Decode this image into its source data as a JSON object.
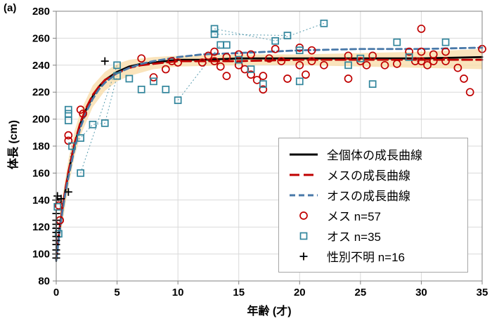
{
  "panel_label": "(a)",
  "chart_data": {
    "type": "scatter",
    "xlabel": "年齢 (才)",
    "ylabel": "体長 (cm)",
    "xlim": [
      0,
      35
    ],
    "ylim": [
      80,
      280
    ],
    "xticks": [
      0,
      5,
      10,
      15,
      20,
      25,
      30,
      35
    ],
    "yticks": [
      80,
      100,
      120,
      140,
      160,
      180,
      200,
      220,
      240,
      260,
      280
    ],
    "grid": true,
    "legend_position": "inside-bottom-right",
    "colors": {
      "all_curve": "#000000",
      "female_curve": "#C00000",
      "male_curve": "#4878A8",
      "female_marker": "#C00000",
      "male_marker": "#31859C",
      "unknown_marker": "#000000",
      "band": "#F9DFB0",
      "grid": "#D9D9D9",
      "axis": "#808080"
    },
    "band": {
      "x": [
        0.3,
        0.5,
        1,
        1.5,
        2,
        3,
        4,
        5,
        6,
        8,
        10,
        15,
        20,
        25,
        30,
        35
      ],
      "lower": [
        112,
        122,
        150,
        172,
        188,
        209,
        221,
        228,
        232,
        237,
        239,
        240,
        240,
        239,
        238,
        237
      ],
      "upper": [
        132,
        142,
        170,
        191,
        206,
        225,
        235,
        241,
        244,
        246,
        247,
        248,
        248,
        249,
        250,
        252
      ]
    },
    "curves": [
      {
        "key": "all",
        "name": "全個体の成長曲線",
        "style": "solid",
        "color_key": "all_curve",
        "x": [
          0,
          0.25,
          0.5,
          0.75,
          1,
          1.5,
          2,
          2.5,
          3,
          3.5,
          4,
          5,
          6,
          7,
          8,
          10,
          12,
          15,
          20,
          25,
          30,
          35
        ],
        "y": [
          96,
          116,
          133,
          147,
          160,
          181,
          197,
          208,
          217,
          224,
          229,
          235,
          239,
          241,
          242,
          244,
          244,
          245,
          245,
          245,
          245,
          246
        ]
      },
      {
        "key": "female",
        "name": "メスの成長曲線",
        "style": "dashed-long",
        "color_key": "female_curve",
        "x": [
          0,
          0.25,
          0.5,
          0.75,
          1,
          1.5,
          2,
          2.5,
          3,
          3.5,
          4,
          5,
          6,
          7,
          8,
          10,
          12,
          15,
          20,
          25,
          30,
          35
        ],
        "y": [
          97,
          117,
          134,
          148,
          161,
          182,
          198,
          209,
          218,
          224,
          229,
          234,
          238,
          240,
          241,
          243,
          243,
          243,
          244,
          244,
          244,
          244
        ]
      },
      {
        "key": "male",
        "name": "オスの成長曲線",
        "style": "dashed",
        "color_key": "male_curve",
        "x": [
          0,
          0.25,
          0.5,
          0.75,
          1,
          1.5,
          2,
          2.5,
          3,
          3.5,
          4,
          5,
          6,
          7,
          8,
          10,
          12,
          15,
          20,
          25,
          30,
          35
        ],
        "y": [
          95,
          114,
          131,
          145,
          157,
          178,
          194,
          206,
          215,
          222,
          227,
          234,
          238,
          241,
          243,
          246,
          248,
          249,
          251,
          252,
          252,
          253
        ]
      }
    ],
    "series": [
      {
        "key": "female",
        "name": "メス",
        "n": 57,
        "marker": "circle",
        "color_key": "female_marker",
        "points": [
          [
            0.2,
            136
          ],
          [
            0.3,
            125
          ],
          [
            1,
            188
          ],
          [
            1,
            184
          ],
          [
            2,
            207
          ],
          [
            2.2,
            204
          ],
          [
            7,
            245
          ],
          [
            8,
            231
          ],
          [
            9,
            237
          ],
          [
            9.5,
            243
          ],
          [
            10,
            242
          ],
          [
            12,
            242
          ],
          [
            12.5,
            247
          ],
          [
            13,
            250
          ],
          [
            13,
            243
          ],
          [
            13.5,
            239
          ],
          [
            14,
            246
          ],
          [
            14,
            232
          ],
          [
            15,
            248
          ],
          [
            15,
            240
          ],
          [
            15.5,
            237
          ],
          [
            16,
            248
          ],
          [
            16,
            233
          ],
          [
            16.5,
            229
          ],
          [
            17,
            232
          ],
          [
            17,
            222
          ],
          [
            17.5,
            245
          ],
          [
            18,
            252
          ],
          [
            18.5,
            243
          ],
          [
            19,
            230
          ],
          [
            20,
            253
          ],
          [
            20,
            240
          ],
          [
            20.5,
            233
          ],
          [
            21,
            251
          ],
          [
            21,
            243
          ],
          [
            22,
            240
          ],
          [
            24,
            247
          ],
          [
            24,
            230
          ],
          [
            25,
            243
          ],
          [
            25.5,
            240
          ],
          [
            26,
            247
          ],
          [
            27,
            240
          ],
          [
            28,
            241
          ],
          [
            29,
            250
          ],
          [
            29.5,
            243
          ],
          [
            30,
            267
          ],
          [
            30,
            250
          ],
          [
            30,
            243
          ],
          [
            30.5,
            240
          ],
          [
            31,
            248
          ],
          [
            31,
            243
          ],
          [
            32,
            250
          ],
          [
            32,
            243
          ],
          [
            33,
            238
          ],
          [
            33.5,
            230
          ],
          [
            34,
            220
          ],
          [
            35,
            252
          ]
        ]
      },
      {
        "key": "male",
        "name": "オス",
        "n": 35,
        "marker": "square",
        "color_key": "male_marker",
        "points": [
          [
            0.1,
            135
          ],
          [
            0.2,
            115
          ],
          [
            1,
            207
          ],
          [
            1,
            204
          ],
          [
            1,
            199
          ],
          [
            1.3,
            180
          ],
          [
            2,
            160
          ],
          [
            2,
            186
          ],
          [
            3,
            196
          ],
          [
            4,
            197
          ],
          [
            5,
            240
          ],
          [
            5,
            232
          ],
          [
            6,
            230
          ],
          [
            7,
            222
          ],
          [
            8,
            228
          ],
          [
            9,
            222
          ],
          [
            10,
            214
          ],
          [
            13,
            267
          ],
          [
            13,
            263
          ],
          [
            13.5,
            255
          ],
          [
            14,
            255
          ],
          [
            15,
            244
          ],
          [
            16,
            237
          ],
          [
            17,
            226
          ],
          [
            18,
            258
          ],
          [
            19,
            262
          ],
          [
            20,
            251
          ],
          [
            20,
            228
          ],
          [
            22,
            271
          ],
          [
            24,
            240
          ],
          [
            25,
            245
          ],
          [
            26,
            226
          ],
          [
            28,
            257
          ],
          [
            29,
            246
          ],
          [
            32,
            257
          ]
        ]
      },
      {
        "key": "unknown",
        "name": "性別不明",
        "n": 16,
        "marker": "plus",
        "color_key": "unknown_marker",
        "points": [
          [
            0,
            97
          ],
          [
            0,
            100
          ],
          [
            0,
            103
          ],
          [
            0,
            107
          ],
          [
            0,
            110
          ],
          [
            0,
            113
          ],
          [
            0,
            116
          ],
          [
            0,
            119
          ],
          [
            0,
            122
          ],
          [
            0,
            125
          ],
          [
            0,
            130
          ],
          [
            0,
            140
          ],
          [
            0.1,
            143
          ],
          [
            0.4,
            141
          ],
          [
            1,
            146
          ],
          [
            4,
            243
          ]
        ]
      }
    ],
    "connectors": [
      [
        [
          0.2,
          115
        ],
        [
          1.3,
          180
        ],
        [
          2,
          186
        ],
        [
          3,
          196
        ],
        [
          4,
          197
        ],
        [
          5,
          232
        ]
      ],
      [
        [
          2,
          160
        ],
        [
          5,
          240
        ]
      ],
      [
        [
          10,
          214
        ],
        [
          13.5,
          255
        ]
      ],
      [
        [
          13,
          267
        ],
        [
          18,
          258
        ],
        [
          22,
          271
        ]
      ],
      [
        [
          13,
          263
        ],
        [
          19,
          262
        ]
      ]
    ],
    "legend": {
      "items": [
        {
          "type": "line",
          "style": "solid",
          "color_key": "all_curve",
          "label": "全個体の成長曲線"
        },
        {
          "type": "line",
          "style": "dashed-long",
          "color_key": "female_curve",
          "label": "メスの成長曲線"
        },
        {
          "type": "line",
          "style": "dashed",
          "color_key": "male_curve",
          "label": "オスの成長曲線"
        },
        {
          "type": "marker",
          "marker": "circle",
          "color_key": "female_marker",
          "label": "メス  n=57"
        },
        {
          "type": "marker",
          "marker": "square",
          "color_key": "male_marker",
          "label": "オス  n=35"
        },
        {
          "type": "marker",
          "marker": "plus",
          "color_key": "unknown_marker",
          "label": "性別不明 n=16"
        }
      ]
    }
  }
}
